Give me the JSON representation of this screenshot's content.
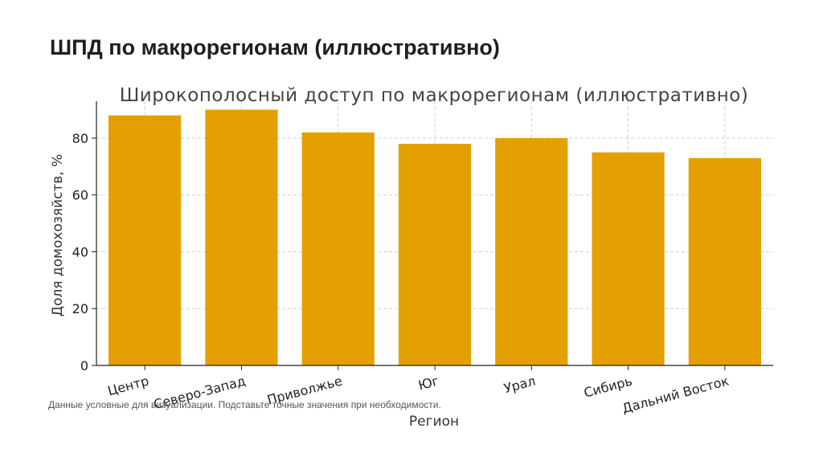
{
  "slide": {
    "title": "ШПД по макрорегионам (иллюстративно)",
    "footnote": "Данные условные для визуализации. Подставьте точные значения при необходимости."
  },
  "chart_data": {
    "type": "bar",
    "title": "Широкополосный доступ по макрорегионам (иллюстративно)",
    "xlabel": "Регион",
    "ylabel": "Доля домохозяйств, %",
    "categories": [
      "Центр",
      "Северо-Запад",
      "Приволжье",
      "Юг",
      "Урал",
      "Сибирь",
      "Дальний Восток"
    ],
    "values": [
      88,
      90,
      82,
      78,
      80,
      75,
      73
    ],
    "ylim": [
      0,
      93
    ],
    "yticks": [
      0,
      20,
      40,
      60,
      80
    ],
    "grid": true,
    "bar_color": "#E3A000"
  }
}
